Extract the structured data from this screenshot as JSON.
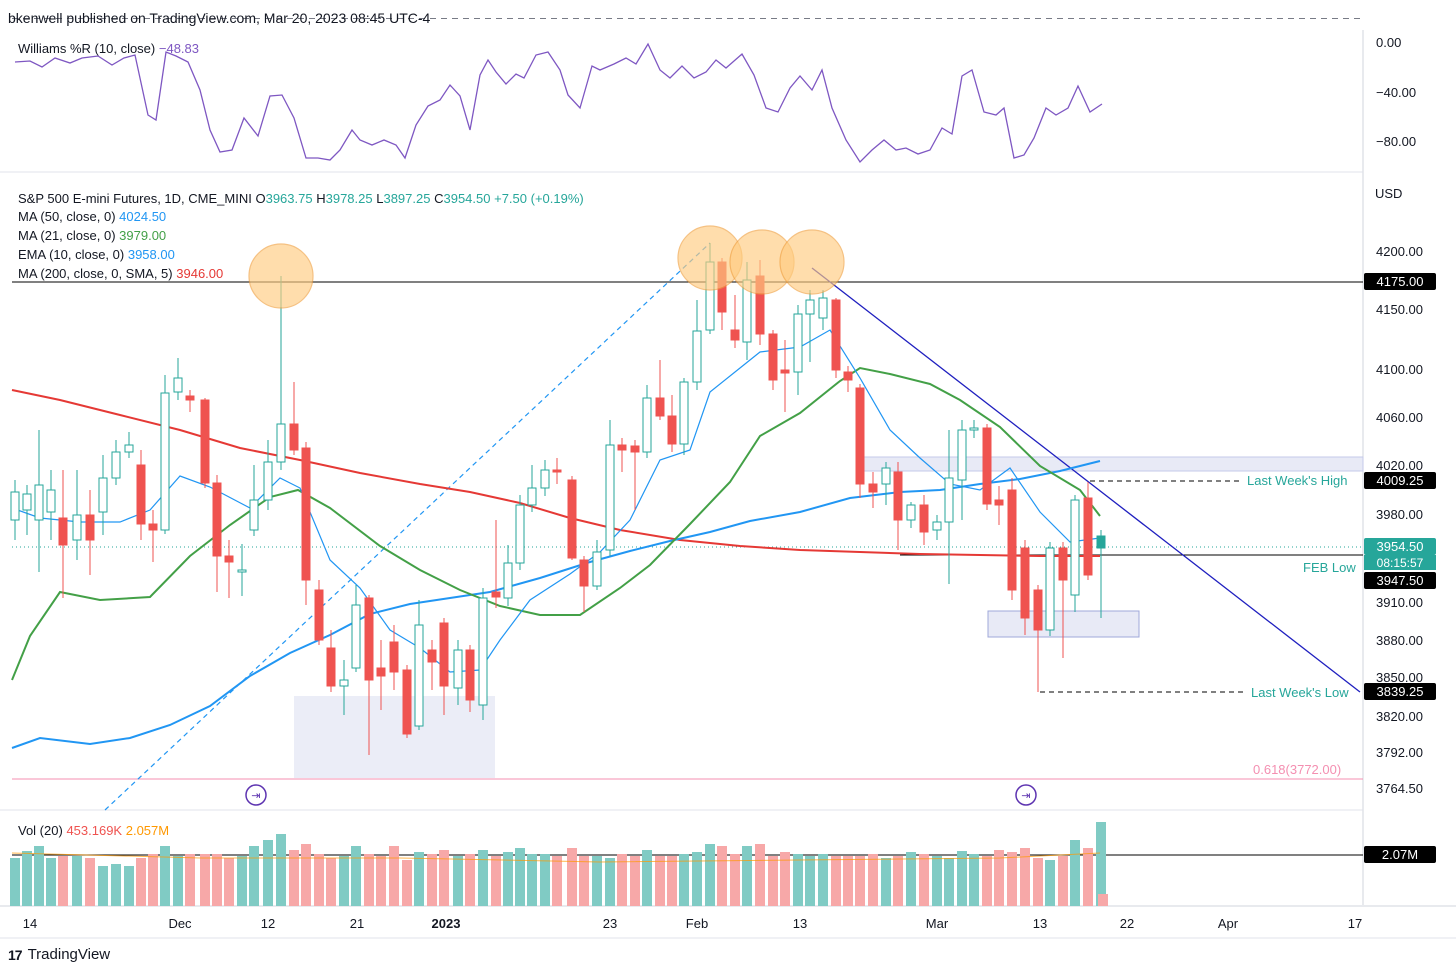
{
  "header": {
    "published": "bkenwell published on TradingView.com, Mar 20, 2023 08:45 UTC-4"
  },
  "footer": {
    "brand": "TradingView",
    "logo": "tv-logo-icon"
  },
  "colors": {
    "up": "#26a69a",
    "down": "#ef5350",
    "ma50": "#2196f3",
    "ma21": "#43a047",
    "ema10": "#2196f3",
    "ma200": "#e53935",
    "wr": "#7e57c2",
    "volUp": "#80cbc4",
    "volDown": "#f7a8a8",
    "trend": "#1f1fbf",
    "circle": "#ffcc80"
  },
  "williams": {
    "label": "Williams %R (10, close)",
    "value": "−48.83",
    "axis": [
      "0.00",
      "−40.00",
      "−80.00"
    ]
  },
  "main": {
    "title": "S&P 500 E-mini Futures, 1D, CME_MINI",
    "ohlc": {
      "o_label": "O",
      "o": "3963.75",
      "h_label": "H",
      "h": "3978.25",
      "l_label": "L",
      "l": "3897.25",
      "c_label": "C",
      "c": "3954.50",
      "chg": "+7.50 (+0.19%)"
    },
    "indicators": [
      {
        "label": "MA (50, close, 0)",
        "value": "4024.50"
      },
      {
        "label": "MA (21, close, 0)",
        "value": "3979.00"
      },
      {
        "label": "EMA (10, close, 0)",
        "value": "3958.00"
      },
      {
        "label": "MA (200, close, 0, SMA, 5)",
        "value": "3946.00"
      }
    ],
    "currency": "USD",
    "y_axis": [
      "4200.00",
      "4150.00",
      "4100.00",
      "4060.00",
      "4020.00",
      "3980.00",
      "3910.00",
      "3880.00",
      "3850.00",
      "3820.00",
      "3792.00",
      "3764.50"
    ],
    "price_tags": {
      "p4175": "4175.00",
      "p4009": "4009.25",
      "current": "3954.50",
      "countdown": "08:15:57",
      "p3947": "3947.50",
      "p3839": "3839.25"
    },
    "annotations": {
      "last_week_high": "Last Week's High",
      "feb_low": "FEB Low",
      "last_week_low": "Last Week's Low",
      "fib": "0.618(3772.00)"
    }
  },
  "volume": {
    "label": "Vol (20)",
    "v1": "453.169K",
    "v2": "2.057M",
    "tag": "2.07M"
  },
  "x_axis": [
    "14",
    "Dec",
    "12",
    "21",
    "2023",
    "23",
    "Feb",
    "13",
    "Mar",
    "13",
    "22",
    "Apr",
    "17"
  ]
}
